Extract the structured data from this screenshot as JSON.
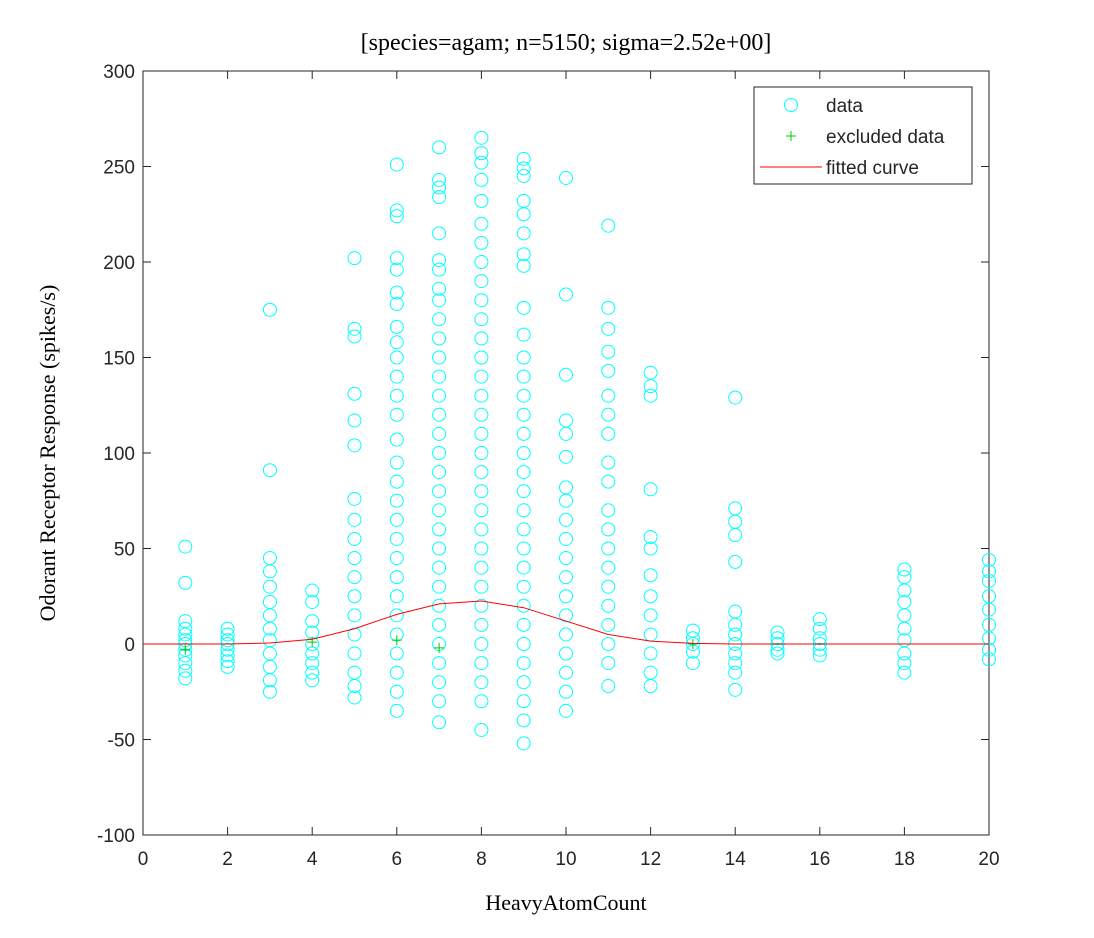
{
  "chart_data": {
    "type": "scatter",
    "title": "[species=agam; n=5150; sigma=2.52e+00]",
    "x_label": "HeavyAtomCount",
    "y_label": "Odorant Receptor Response (spikes/s)",
    "xlim": [
      0,
      20
    ],
    "xticks": [
      0,
      2,
      4,
      6,
      8,
      10,
      12,
      14,
      16,
      18,
      20
    ],
    "ylim": [
      -100,
      300
    ],
    "yticks": [
      -100,
      -50,
      0,
      50,
      100,
      150,
      200,
      250,
      300
    ],
    "legend": "upper right",
    "series": [
      {
        "name": "data",
        "color": "#00ffff",
        "marker": "circle",
        "groups": [
          {
            "x": 1,
            "values": [
              51,
              32,
              12,
              8,
              5,
              2,
              0,
              -3,
              -6,
              -10,
              -14,
              -18
            ]
          },
          {
            "x": 2,
            "values": [
              8,
              5,
              2,
              0,
              -3,
              -6,
              -9,
              -12
            ]
          },
          {
            "x": 3,
            "values": [
              175,
              91,
              45,
              38,
              30,
              22,
              15,
              8,
              2,
              -5,
              -12,
              -19,
              -25
            ]
          },
          {
            "x": 4,
            "values": [
              28,
              22,
              12,
              6,
              0,
              -5,
              -10,
              -15,
              -19
            ]
          },
          {
            "x": 5,
            "values": [
              202,
              165,
              161,
              131,
              117,
              104,
              76,
              65,
              55,
              45,
              35,
              25,
              15,
              5,
              -5,
              -15,
              -22,
              -28
            ]
          },
          {
            "x": 6,
            "values": [
              251,
              227,
              224,
              202,
              196,
              184,
              178,
              166,
              158,
              150,
              140,
              130,
              120,
              107,
              95,
              85,
              75,
              65,
              55,
              45,
              35,
              25,
              15,
              5,
              -5,
              -15,
              -25,
              -35
            ]
          },
          {
            "x": 7,
            "values": [
              260,
              243,
              239,
              234,
              215,
              201,
              196,
              186,
              180,
              170,
              160,
              150,
              140,
              130,
              120,
              110,
              100,
              90,
              80,
              70,
              60,
              50,
              40,
              30,
              20,
              10,
              0,
              -10,
              -20,
              -30,
              -41
            ]
          },
          {
            "x": 8,
            "values": [
              265,
              257,
              252,
              243,
              232,
              220,
              210,
              200,
              190,
              180,
              170,
              160,
              150,
              140,
              130,
              120,
              110,
              100,
              90,
              80,
              70,
              60,
              50,
              40,
              30,
              20,
              10,
              0,
              -10,
              -20,
              -30,
              -45
            ]
          },
          {
            "x": 9,
            "values": [
              254,
              249,
              245,
              232,
              225,
              215,
              204,
              198,
              176,
              162,
              150,
              140,
              130,
              120,
              110,
              100,
              90,
              80,
              70,
              60,
              50,
              40,
              30,
              20,
              10,
              0,
              -10,
              -20,
              -30,
              -40,
              -52
            ]
          },
          {
            "x": 10,
            "values": [
              244,
              183,
              141,
              117,
              110,
              98,
              82,
              75,
              65,
              55,
              45,
              35,
              25,
              15,
              5,
              -5,
              -15,
              -25,
              -35
            ]
          },
          {
            "x": 11,
            "values": [
              219,
              176,
              165,
              153,
              143,
              130,
              120,
              110,
              95,
              85,
              70,
              60,
              50,
              40,
              30,
              20,
              10,
              0,
              -10,
              -22
            ]
          },
          {
            "x": 12,
            "values": [
              142,
              135,
              130,
              81,
              56,
              50,
              36,
              25,
              15,
              5,
              -5,
              -15,
              -22
            ]
          },
          {
            "x": 13,
            "values": [
              7,
              3,
              0,
              -4,
              -10
            ]
          },
          {
            "x": 14,
            "values": [
              129,
              71,
              64,
              57,
              43,
              17,
              10,
              5,
              0,
              -5,
              -10,
              -15,
              -24
            ]
          },
          {
            "x": 15,
            "values": [
              6,
              3,
              0,
              -3,
              -5
            ]
          },
          {
            "x": 16,
            "values": [
              13,
              8,
              3,
              0,
              -3,
              -6
            ]
          },
          {
            "x": 18,
            "values": [
              39,
              35,
              28,
              22,
              15,
              8,
              2,
              -5,
              -10,
              -15
            ]
          },
          {
            "x": 20,
            "values": [
              44,
              38,
              33,
              25,
              18,
              10,
              3,
              -3,
              -8
            ]
          }
        ]
      },
      {
        "name": "excluded data",
        "color": "#00cc00",
        "marker": "plus",
        "x": [
          1,
          4,
          6,
          7,
          13
        ],
        "values": [
          -3,
          1,
          2,
          -2,
          0
        ]
      },
      {
        "name": "fitted curve",
        "color": "#ff0000",
        "marker": "line",
        "x": [
          0,
          1,
          2,
          3,
          4,
          5,
          6,
          7,
          8,
          9,
          10,
          11,
          12,
          13,
          14,
          16,
          18,
          20
        ],
        "values": [
          0,
          0,
          0,
          0.5,
          2.5,
          8,
          15.5,
          21,
          22.5,
          19,
          12,
          5,
          1.5,
          0.3,
          0,
          0,
          0,
          0
        ]
      }
    ]
  }
}
